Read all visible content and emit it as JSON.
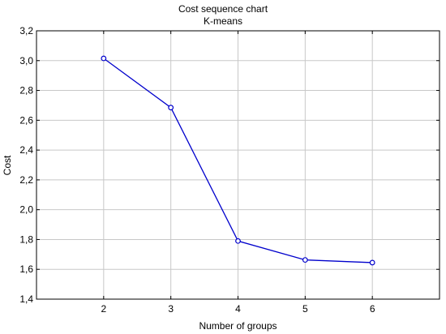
{
  "chart_data": {
    "type": "line",
    "title": "Cost sequence chart",
    "subtitle": "K-means",
    "xlabel": "Number of groups",
    "ylabel": "Cost",
    "x": [
      2,
      3,
      4,
      5,
      6
    ],
    "series": [
      {
        "values": [
          3.015,
          2.685,
          1.79,
          1.663,
          1.645
        ],
        "color": "#0000cc"
      }
    ],
    "xlim": [
      1,
      7
    ],
    "ylim": [
      1.4,
      3.2
    ],
    "x_ticks": [
      2,
      3,
      4,
      5,
      6
    ],
    "x_tick_labels": [
      "2",
      "3",
      "4",
      "5",
      "6"
    ],
    "y_ticks": [
      1.4,
      1.6,
      1.8,
      2.0,
      2.2,
      2.4,
      2.6,
      2.8,
      3.0,
      3.2
    ],
    "y_tick_labels": [
      "1,4",
      "1,6",
      "1,8",
      "2,0",
      "2,2",
      "2,4",
      "2,6",
      "2,8",
      "3,0",
      "3,2"
    ],
    "grid": true,
    "marker": "open-circle",
    "colors": {
      "line": "#0000cc",
      "grid": "#c8c8c8",
      "axis": "#000000",
      "background": "#ffffff"
    }
  }
}
